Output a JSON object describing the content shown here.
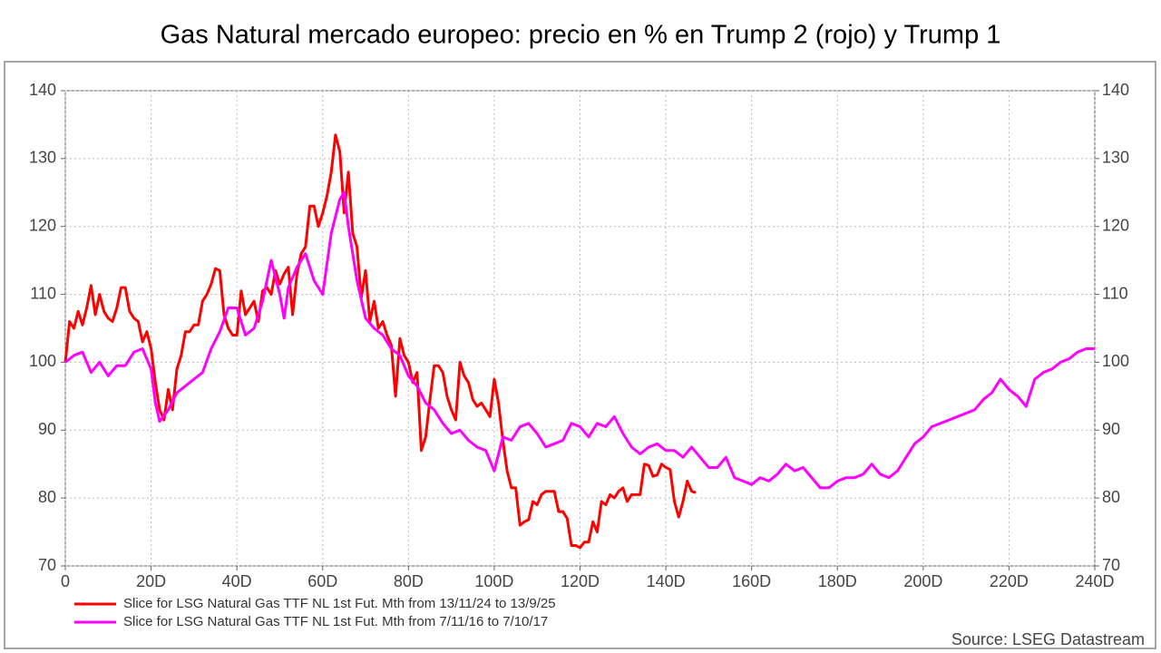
{
  "chart_data": {
    "type": "line",
    "title": "Gas Natural mercado europeo: precio en % en Trump 2 (rojo) y Trump 1",
    "source": "Source: LSEG Datastream",
    "xlim": [
      0,
      240
    ],
    "xticks": [
      0,
      {
        "value": 20,
        "label": "20D"
      },
      {
        "value": 40,
        "label": "40D"
      },
      {
        "value": 60,
        "label": "60D"
      },
      {
        "value": 80,
        "label": "80D"
      },
      {
        "value": 100,
        "label": "100D"
      },
      {
        "value": 120,
        "label": "120D"
      },
      {
        "value": 140,
        "label": "140D"
      },
      {
        "value": 160,
        "label": "160D"
      },
      {
        "value": 180,
        "label": "180D"
      },
      {
        "value": 200,
        "label": "200D"
      },
      {
        "value": 220,
        "label": "220D"
      },
      {
        "value": 240,
        "label": "240D"
      }
    ],
    "ylim": [
      70,
      140
    ],
    "yticks": [
      70,
      80,
      90,
      100,
      110,
      120,
      130,
      140
    ],
    "y2lim": [
      70,
      140
    ],
    "y2ticks": [
      70,
      80,
      90,
      100,
      110,
      120,
      130,
      140
    ],
    "grid": true,
    "series": [
      {
        "name": "Slice for LSG Natural Gas TTF NL 1st Fut. Mth from 13/11/24 to 13/9/25",
        "color": "#ff0000",
        "x": [
          0,
          1,
          2,
          3,
          4,
          5,
          6,
          7,
          8,
          9,
          10,
          11,
          12,
          13,
          14,
          15,
          16,
          17,
          18,
          19,
          20,
          21,
          22,
          23,
          24,
          25,
          26,
          27,
          28,
          29,
          30,
          31,
          32,
          33,
          34,
          35,
          36,
          37,
          38,
          39,
          40,
          41,
          42,
          43,
          44,
          45,
          46,
          47,
          48,
          49,
          50,
          51,
          52,
          53,
          54,
          55,
          56,
          57,
          58,
          59,
          60,
          61,
          62,
          63,
          64,
          65,
          66,
          67,
          68,
          69,
          70,
          71,
          72,
          73,
          74,
          75,
          76,
          77,
          78,
          79,
          80,
          81,
          82,
          83,
          84,
          85,
          86,
          87,
          88,
          89,
          90,
          91,
          92,
          93,
          94,
          95,
          96,
          97,
          98,
          99,
          100,
          101,
          102,
          103,
          104,
          105,
          106,
          107,
          108,
          109,
          110,
          111,
          112,
          113,
          114,
          115,
          116,
          117,
          118,
          119,
          120,
          121,
          122,
          123,
          124,
          125,
          126,
          127,
          128,
          129,
          130,
          131,
          132,
          133,
          134,
          135,
          136,
          137,
          138,
          139,
          140,
          141,
          142,
          143,
          144,
          145,
          146,
          147
        ],
        "values": [
          100,
          106,
          105,
          107.5,
          105.5,
          108,
          111.3,
          107,
          110,
          107.5,
          106.5,
          106,
          108,
          111,
          111,
          107.5,
          106.5,
          106,
          103,
          104.5,
          102,
          97,
          93,
          91.5,
          96,
          93,
          99,
          101,
          104.5,
          104.5,
          105.5,
          105.5,
          109,
          110,
          111.5,
          113.8,
          113.5,
          107,
          105,
          104,
          104,
          110.5,
          107,
          108,
          109,
          106,
          110.5,
          111,
          110,
          113.5,
          111.5,
          113,
          114,
          107,
          113,
          116,
          117,
          123,
          123,
          120,
          122,
          124.5,
          128,
          133.5,
          131,
          122,
          128,
          119,
          117,
          109.5,
          113.5,
          106,
          109,
          105,
          106,
          104,
          102.5,
          95,
          103.5,
          101,
          100,
          97,
          98.5,
          87,
          89,
          94.5,
          99.5,
          99.5,
          98.5,
          95,
          93,
          91.5,
          100,
          98,
          97,
          94.5,
          93.5,
          94,
          93,
          92,
          97.5,
          94,
          88.5,
          84,
          81.5,
          81.5,
          76,
          76.5,
          76.8,
          79.5,
          79,
          80.5,
          81,
          81,
          81,
          78,
          78,
          77,
          73,
          73,
          72.7,
          73.5,
          73.5,
          76.5,
          75,
          79.5,
          79,
          80.5,
          80,
          81,
          81.5,
          79.5,
          80.5,
          80.5,
          80.5,
          85,
          84.8,
          83.2,
          83.4,
          85,
          84.5,
          84.2,
          79.5,
          77.2,
          79.5,
          82.5,
          81,
          80.8
        ]
      },
      {
        "name": "Slice for LSG Natural Gas TTF NL 1st Fut. Mth from 7/11/16 to 7/10/17",
        "color": "#ff00ff",
        "x": [
          0,
          2,
          4,
          6,
          8,
          10,
          12,
          14,
          16,
          18,
          20,
          21,
          22,
          24,
          26,
          28,
          30,
          32,
          34,
          36,
          38,
          40,
          42,
          44,
          46,
          48,
          50,
          51,
          52,
          54,
          56,
          58,
          60,
          62,
          64,
          65,
          66,
          68,
          70,
          72,
          74,
          76,
          78,
          80,
          82,
          84,
          86,
          88,
          90,
          92,
          94,
          96,
          98,
          100,
          102,
          104,
          106,
          108,
          110,
          112,
          114,
          116,
          118,
          120,
          122,
          124,
          126,
          128,
          130,
          132,
          134,
          136,
          138,
          140,
          142,
          144,
          146,
          148,
          150,
          152,
          154,
          156,
          158,
          160,
          162,
          164,
          166,
          168,
          170,
          172,
          174,
          176,
          178,
          180,
          182,
          184,
          186,
          188,
          190,
          192,
          194,
          196,
          198,
          200,
          202,
          204,
          206,
          208,
          210,
          212,
          214,
          216,
          218,
          220,
          222,
          224,
          226,
          228,
          230,
          232,
          234,
          236,
          238,
          240
        ],
        "values": [
          100,
          101,
          101.5,
          98.5,
          100,
          98,
          99.5,
          99.5,
          101.5,
          102,
          99,
          94,
          91.3,
          93,
          95.5,
          96.5,
          97.5,
          98.5,
          102,
          104.5,
          108,
          108,
          104,
          105,
          109,
          115,
          110,
          106.5,
          111,
          114,
          116,
          112,
          110,
          119,
          124,
          125,
          120,
          112,
          106.5,
          105,
          104,
          102,
          101,
          98,
          96.5,
          94,
          93,
          91,
          89.5,
          90,
          88.5,
          87.5,
          87,
          84,
          89,
          88.5,
          90.5,
          91,
          89.5,
          87.5,
          88,
          88.5,
          91,
          90.5,
          89,
          91,
          90.5,
          92,
          89.5,
          87.5,
          86.5,
          87.5,
          88,
          87,
          87,
          86,
          87.5,
          86,
          84.5,
          84.5,
          86,
          83,
          82.5,
          82,
          83,
          82.5,
          83.5,
          85,
          84,
          84.5,
          83,
          81.5,
          81.5,
          82.5,
          83,
          83,
          83.5,
          85,
          83.5,
          83,
          84,
          86,
          88,
          89,
          90.5,
          91,
          91.5,
          92,
          92.5,
          93,
          94.5,
          95.5,
          97.5,
          96,
          95,
          93.5,
          97.5,
          98.5,
          99,
          100,
          100.5,
          101.5,
          102,
          102
        ]
      }
    ]
  }
}
